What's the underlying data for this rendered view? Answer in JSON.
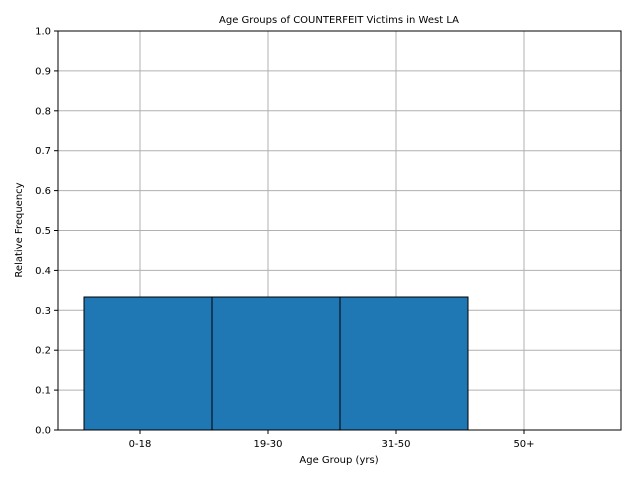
{
  "chart_data": {
    "type": "bar",
    "title": "Age Groups of COUNTERFEIT Victims in West LA",
    "xlabel": "Age Group (yrs)",
    "ylabel": "Relative Frequency",
    "categories": [
      "0-18",
      "19-30",
      "31-50",
      "50+"
    ],
    "values": [
      0.3333,
      0.3333,
      0.3333,
      0.0
    ],
    "ylim": [
      0,
      1.0
    ],
    "yticks": [
      "0.0",
      "0.1",
      "0.2",
      "0.3",
      "0.4",
      "0.5",
      "0.6",
      "0.7",
      "0.8",
      "0.9",
      "1.0"
    ],
    "grid": true,
    "bar_color": "#1f77b4",
    "bar_edge_color": "#000000"
  }
}
